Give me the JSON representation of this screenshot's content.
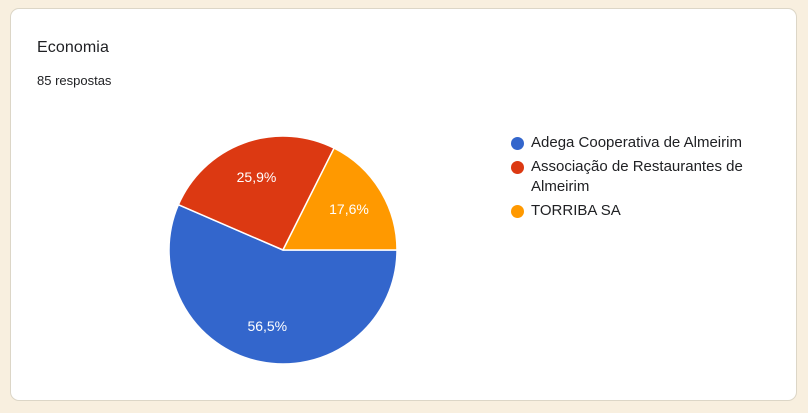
{
  "card": {
    "title": "Economia",
    "subtitle": "85 respostas"
  },
  "chart_data": {
    "type": "pie",
    "title": "Economia",
    "subtitle": "85 respostas",
    "categories": [
      "Adega Cooperativa de Almeirim",
      "Associação de Restaurantes de Almeirim",
      "TORRIBA SA"
    ],
    "values": [
      56.5,
      25.9,
      17.6
    ],
    "value_labels": [
      "56,5%",
      "25,9%",
      "17,6%"
    ],
    "colors": [
      "#3366CC",
      "#DC3912",
      "#FF9900"
    ],
    "legend_position": "right",
    "start_angle_deg": 0,
    "direction": "clockwise",
    "slice_border_color": "#FFFFFF",
    "label_radius_ratio": 0.68
  },
  "theme": {
    "page_background": "#F8EFDF",
    "card_background": "#FFFFFF",
    "card_border": "#DCD6C7",
    "text_color": "#202124",
    "slice_label_color": "#FFFFFF"
  }
}
